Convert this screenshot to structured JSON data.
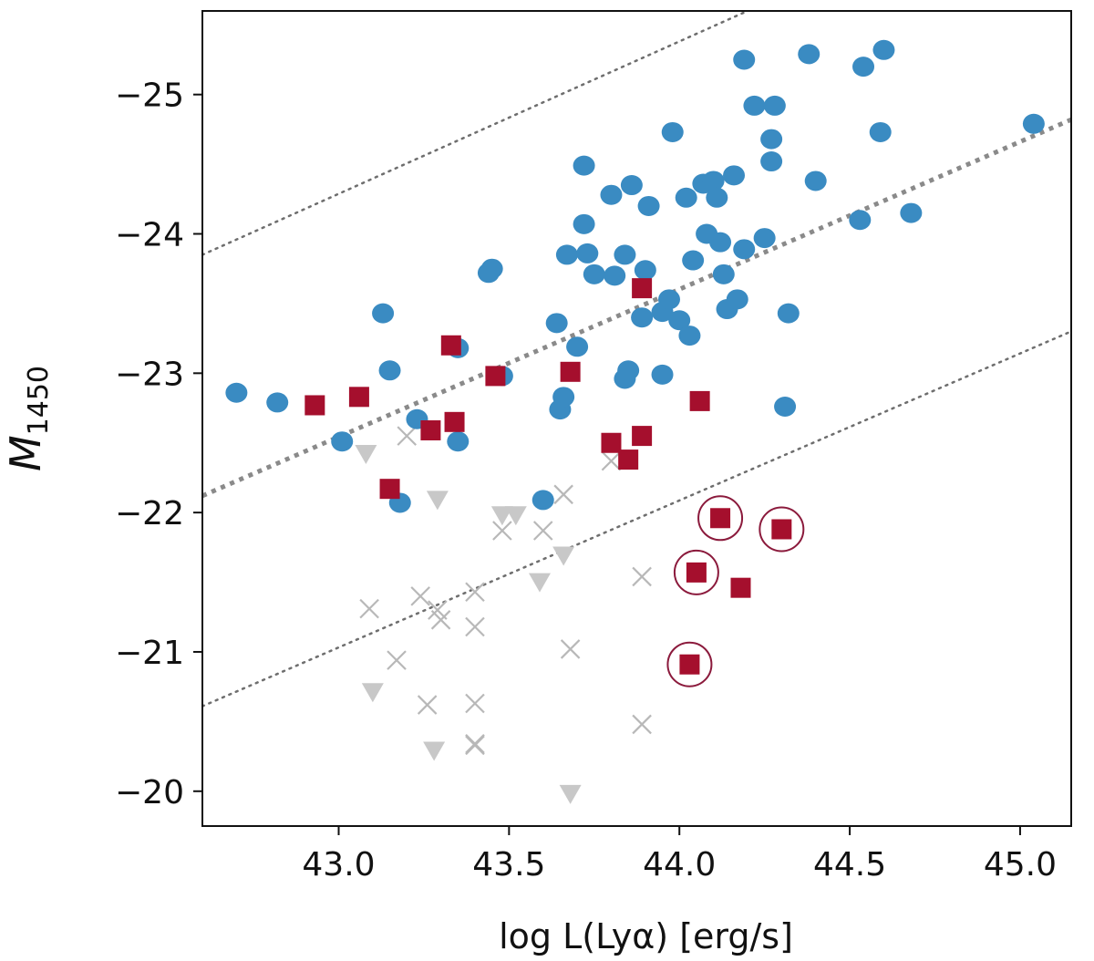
{
  "chart_data": {
    "type": "scatter",
    "xlabel": "log L(Lyα) [erg/s]",
    "ylabel_main": "M",
    "ylabel_sub": "1450",
    "xlim": [
      42.6,
      45.15
    ],
    "ylim": [
      -19.75,
      -25.6
    ],
    "x_ticks": [
      43.0,
      43.5,
      44.0,
      44.5,
      45.0
    ],
    "x_tick_labels": [
      "43.0",
      "43.5",
      "44.0",
      "44.5",
      "45.0"
    ],
    "y_ticks": [
      -25,
      -24,
      -23,
      -22,
      -21,
      -20
    ],
    "y_tick_labels": [
      "−25",
      "−24",
      "−23",
      "−22",
      "−21",
      "−20"
    ],
    "colors": {
      "blue": "#3a8bc2",
      "red": "#a50f2d",
      "gray": "#c8c8c8",
      "ring": "#8b1a3c",
      "line": "#777777"
    },
    "lines": [
      {
        "name": "upper-dotted",
        "style": "thin",
        "points": [
          [
            42.6,
            -23.85
          ],
          [
            44.2,
            -25.6
          ]
        ]
      },
      {
        "name": "center-thick-dotted",
        "style": "thick",
        "points": [
          [
            42.6,
            -22.12
          ],
          [
            45.15,
            -24.82
          ]
        ]
      },
      {
        "name": "lower-dotted",
        "style": "thin",
        "points": [
          [
            42.6,
            -20.61
          ],
          [
            45.15,
            -23.3
          ]
        ]
      }
    ],
    "series": [
      {
        "name": "blue-circles",
        "marker": "circle",
        "points": [
          [
            42.7,
            -22.86
          ],
          [
            42.82,
            -22.79
          ],
          [
            43.01,
            -22.51
          ],
          [
            43.13,
            -23.43
          ],
          [
            43.15,
            -23.02
          ],
          [
            43.18,
            -22.07
          ],
          [
            43.23,
            -22.67
          ],
          [
            43.35,
            -22.51
          ],
          [
            43.35,
            -23.18
          ],
          [
            43.45,
            -23.75
          ],
          [
            43.44,
            -23.72
          ],
          [
            43.48,
            -22.98
          ],
          [
            43.6,
            -22.09
          ],
          [
            43.65,
            -22.74
          ],
          [
            43.64,
            -23.36
          ],
          [
            43.66,
            -22.83
          ],
          [
            43.67,
            -23.85
          ],
          [
            43.7,
            -23.19
          ],
          [
            43.72,
            -24.07
          ],
          [
            43.73,
            -23.86
          ],
          [
            43.72,
            -24.49
          ],
          [
            43.75,
            -23.71
          ],
          [
            43.8,
            -24.28
          ],
          [
            43.81,
            -23.7
          ],
          [
            43.84,
            -23.85
          ],
          [
            43.84,
            -22.96
          ],
          [
            43.85,
            -23.02
          ],
          [
            43.86,
            -24.35
          ],
          [
            43.89,
            -23.4
          ],
          [
            43.91,
            -24.2
          ],
          [
            43.9,
            -23.74
          ],
          [
            43.95,
            -22.99
          ],
          [
            43.95,
            -23.44
          ],
          [
            43.97,
            -23.53
          ],
          [
            43.98,
            -24.73
          ],
          [
            44.0,
            -23.38
          ],
          [
            44.02,
            -24.26
          ],
          [
            44.03,
            -23.27
          ],
          [
            44.04,
            -23.81
          ],
          [
            44.07,
            -24.36
          ],
          [
            44.08,
            -24.0
          ],
          [
            44.1,
            -24.38
          ],
          [
            44.12,
            -23.94
          ],
          [
            44.11,
            -24.26
          ],
          [
            44.13,
            -23.71
          ],
          [
            44.14,
            -23.46
          ],
          [
            44.16,
            -24.42
          ],
          [
            44.17,
            -23.53
          ],
          [
            44.19,
            -25.25
          ],
          [
            44.19,
            -23.89
          ],
          [
            44.22,
            -24.92
          ],
          [
            44.25,
            -23.97
          ],
          [
            44.27,
            -24.52
          ],
          [
            44.27,
            -24.68
          ],
          [
            44.28,
            -24.92
          ],
          [
            44.31,
            -22.76
          ],
          [
            44.32,
            -23.43
          ],
          [
            44.38,
            -25.29
          ],
          [
            44.4,
            -24.38
          ],
          [
            44.53,
            -24.1
          ],
          [
            44.54,
            -25.2
          ],
          [
            44.59,
            -24.73
          ],
          [
            44.6,
            -25.32
          ],
          [
            44.68,
            -24.15
          ],
          [
            45.04,
            -24.79
          ]
        ]
      },
      {
        "name": "red-squares",
        "marker": "square",
        "points": [
          [
            42.93,
            -22.77
          ],
          [
            43.06,
            -22.83
          ],
          [
            43.15,
            -22.17
          ],
          [
            43.27,
            -22.59
          ],
          [
            43.33,
            -23.2
          ],
          [
            43.34,
            -22.65
          ],
          [
            43.46,
            -22.98
          ],
          [
            43.68,
            -23.01
          ],
          [
            43.8,
            -22.5
          ],
          [
            43.85,
            -22.38
          ],
          [
            43.89,
            -23.61
          ],
          [
            43.89,
            -22.55
          ],
          [
            44.06,
            -22.8
          ],
          [
            44.12,
            -21.96
          ],
          [
            44.3,
            -21.88
          ],
          [
            44.05,
            -21.57
          ],
          [
            44.18,
            -21.46
          ],
          [
            44.03,
            -20.91
          ]
        ]
      },
      {
        "name": "circled-highlights",
        "marker": "ring",
        "points": [
          [
            44.12,
            -21.96
          ],
          [
            44.3,
            -21.88
          ],
          [
            44.05,
            -21.57
          ],
          [
            44.03,
            -20.91
          ]
        ]
      },
      {
        "name": "gray-triangles",
        "marker": "triangle-down",
        "points": [
          [
            43.08,
            -22.42
          ],
          [
            43.29,
            -22.09
          ],
          [
            43.48,
            -21.98
          ],
          [
            43.52,
            -21.98
          ],
          [
            43.59,
            -21.5
          ],
          [
            43.66,
            -21.69
          ],
          [
            43.1,
            -20.71
          ],
          [
            43.28,
            -20.29
          ],
          [
            43.68,
            -19.98
          ]
        ]
      },
      {
        "name": "gray-crosses",
        "marker": "x",
        "points": [
          [
            43.2,
            -22.55
          ],
          [
            43.66,
            -22.13
          ],
          [
            43.48,
            -21.87
          ],
          [
            43.6,
            -21.87
          ],
          [
            43.8,
            -22.37
          ],
          [
            43.09,
            -21.31
          ],
          [
            43.24,
            -21.4
          ],
          [
            43.29,
            -21.3
          ],
          [
            43.3,
            -21.23
          ],
          [
            43.4,
            -21.43
          ],
          [
            43.4,
            -21.18
          ],
          [
            43.89,
            -21.54
          ],
          [
            43.68,
            -21.02
          ],
          [
            43.17,
            -20.94
          ],
          [
            43.26,
            -20.62
          ],
          [
            43.4,
            -20.63
          ],
          [
            43.4,
            -20.34
          ],
          [
            43.4,
            -20.33
          ],
          [
            43.89,
            -20.48
          ]
        ]
      }
    ]
  }
}
